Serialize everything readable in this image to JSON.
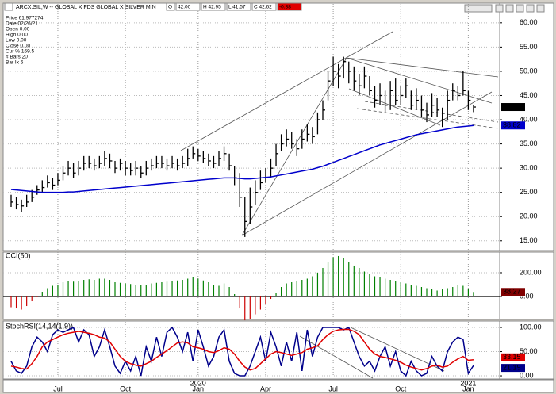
{
  "chart_data": [
    {
      "type": "ohlc",
      "title": "ARCX:SIL,W -- GLOBAL X FDS GLOBAL X SILVER MIN",
      "header_fields": [
        "O",
        "42.00",
        "H 42.95",
        "L 41.57",
        "C 42.62",
        "-0.38"
      ],
      "info_lines": [
        "Price 61.977274",
        "Date 02/26/21",
        "Open 0.00",
        "High 0.00",
        "Low 0.00",
        "Close 0.00",
        "Cur % 169.5",
        "# Bars 20",
        "Bar Ix 6"
      ],
      "color": "#000000",
      "high": [
        24.5,
        24.0,
        23.5,
        24.5,
        25.5,
        26.5,
        27.5,
        28.5,
        28.0,
        29.0,
        30.5,
        31.5,
        31.0,
        31.5,
        32.5,
        32.5,
        32.0,
        32.5,
        33.5,
        33.0,
        31.5,
        32.0,
        31.5,
        31.0,
        31.5,
        30.5,
        31.5,
        32.0,
        32.5,
        32.5,
        32.0,
        32.5,
        32.0,
        32.5,
        34.0,
        34.5,
        34.0,
        33.5,
        33.0,
        32.5,
        33.5,
        34.5,
        33.0,
        30.5,
        29.0,
        24.0,
        26.0,
        27.5,
        29.5,
        30.0,
        32.0,
        35.0,
        37.0,
        38.0,
        37.5,
        36.0,
        38.0,
        39.0,
        38.5,
        41.5,
        44.0,
        50.0,
        53.0,
        51.5,
        53.0,
        52.0,
        51.0,
        49.5,
        51.0,
        49.0,
        47.0,
        47.5,
        46.0,
        48.0,
        48.5,
        47.0,
        48.5,
        46.0,
        46.5,
        45.0,
        43.5,
        45.5,
        44.5,
        42.5,
        46.0,
        47.5,
        47.0,
        50.0,
        46.0,
        42.95
      ],
      "low": [
        22.0,
        21.5,
        21.0,
        22.0,
        23.0,
        24.5,
        25.0,
        26.0,
        25.5,
        26.5,
        27.5,
        28.5,
        28.0,
        28.5,
        29.5,
        30.0,
        29.5,
        30.0,
        30.5,
        30.0,
        29.0,
        29.5,
        28.5,
        28.5,
        28.5,
        28.0,
        28.5,
        29.5,
        30.0,
        30.0,
        29.5,
        30.0,
        29.5,
        30.0,
        30.5,
        32.0,
        31.5,
        31.0,
        30.5,
        30.0,
        30.5,
        31.5,
        29.5,
        26.5,
        22.0,
        15.8,
        18.5,
        22.5,
        25.5,
        27.0,
        28.0,
        30.5,
        33.5,
        34.5,
        34.0,
        32.5,
        34.0,
        35.5,
        35.0,
        37.0,
        40.0,
        44.0,
        47.0,
        46.5,
        48.5,
        47.5,
        46.0,
        45.0,
        46.5,
        45.0,
        42.5,
        43.0,
        41.5,
        42.0,
        43.0,
        43.0,
        44.5,
        42.0,
        42.0,
        40.5,
        39.5,
        40.5,
        40.5,
        38.5,
        40.0,
        44.0,
        44.0,
        45.0,
        42.0,
        41.57
      ],
      "close": [
        23.0,
        22.5,
        22.2,
        23.0,
        24.0,
        25.5,
        26.0,
        27.0,
        26.5,
        27.5,
        29.0,
        30.0,
        29.0,
        30.0,
        31.0,
        31.0,
        30.5,
        31.0,
        32.0,
        31.5,
        30.0,
        31.0,
        30.0,
        29.5,
        30.0,
        29.0,
        30.0,
        30.5,
        31.0,
        31.0,
        30.5,
        31.0,
        30.5,
        31.0,
        32.0,
        33.0,
        32.5,
        32.0,
        31.5,
        31.0,
        32.0,
        33.0,
        30.5,
        28.0,
        24.0,
        19.0,
        22.0,
        25.0,
        27.0,
        28.0,
        30.0,
        33.0,
        35.0,
        36.0,
        35.0,
        34.0,
        36.0,
        37.0,
        36.5,
        40.0,
        42.0,
        48.0,
        50.0,
        49.0,
        52.0,
        50.0,
        48.0,
        47.0,
        49.0,
        46.0,
        44.0,
        45.0,
        43.0,
        46.0,
        44.0,
        45.0,
        47.0,
        43.0,
        44.0,
        42.0,
        41.0,
        43.0,
        42.0,
        40.0,
        44.0,
        46.0,
        45.0,
        46.0,
        44.0,
        42.62
      ],
      "moving_average": {
        "color": "#0000cc",
        "values": [
          25.6,
          25.5,
          25.4,
          25.3,
          25.2,
          25.1,
          25.0,
          25.0,
          25.0,
          25.0,
          25.0,
          25.1,
          25.1,
          25.2,
          25.3,
          25.4,
          25.5,
          25.6,
          25.7,
          25.8,
          25.9,
          26.0,
          26.1,
          26.2,
          26.3,
          26.4,
          26.5,
          26.6,
          26.7,
          26.8,
          26.9,
          27.0,
          27.1,
          27.2,
          27.3,
          27.4,
          27.5,
          27.6,
          27.7,
          27.8,
          27.9,
          28.0,
          28.0,
          28.0,
          27.9,
          27.8,
          27.8,
          27.9,
          28.0,
          28.1,
          28.2,
          28.4,
          28.6,
          28.8,
          29.0,
          29.2,
          29.4,
          29.6,
          29.8,
          30.1,
          30.4,
          30.8,
          31.2,
          31.6,
          32.0,
          32.4,
          32.8,
          33.2,
          33.6,
          34.0,
          34.4,
          34.8,
          35.1,
          35.4,
          35.7,
          36.0,
          36.3,
          36.6,
          36.9,
          37.1,
          37.3,
          37.5,
          37.7,
          37.9,
          38.1,
          38.3,
          38.5,
          38.6,
          38.7,
          38.82
        ]
      },
      "ylim": [
        13.0,
        63.9
      ],
      "yticks": [
        {
          "value": 15,
          "label": "15.00"
        },
        {
          "value": 20,
          "label": "20.00"
        },
        {
          "value": 25,
          "label": "25.00"
        },
        {
          "value": 30,
          "label": "30.00"
        },
        {
          "value": 35,
          "label": "35.00"
        },
        {
          "value": 40,
          "label": "40.00"
        },
        {
          "value": 45,
          "label": "45.00"
        },
        {
          "value": 50,
          "label": "50.00"
        },
        {
          "value": 55,
          "label": "55.00"
        },
        {
          "value": 60,
          "label": "60.00"
        }
      ],
      "grid": true
    },
    {
      "type": "bar",
      "title": "CCI(50)",
      "values": [
        -90,
        -100,
        -110,
        -80,
        -40,
        -5,
        40,
        70,
        90,
        100,
        120,
        130,
        125,
        130,
        140,
        145,
        140,
        150,
        150,
        140,
        120,
        115,
        110,
        105,
        100,
        95,
        100,
        110,
        115,
        120,
        125,
        130,
        135,
        140,
        150,
        160,
        150,
        135,
        120,
        100,
        90,
        110,
        80,
        20,
        -100,
        -200,
        -190,
        -150,
        -110,
        -60,
        -20,
        30,
        80,
        110,
        120,
        130,
        140,
        150,
        170,
        200,
        240,
        290,
        330,
        340,
        320,
        290,
        260,
        240,
        210,
        190,
        170,
        160,
        150,
        140,
        130,
        120,
        110,
        100,
        90,
        80,
        70,
        60,
        50,
        60,
        70,
        80,
        100,
        90,
        60,
        38.27
      ],
      "positive_color": "#008000",
      "negative_color": "#cc0000",
      "label_color": "#800000",
      "ylim": [
        -193,
        373
      ],
      "yticks": [
        {
          "value": 0,
          "label": "0.00"
        },
        {
          "value": 200,
          "label": "200.00"
        }
      ],
      "grid": true
    },
    {
      "type": "line",
      "title": "StochRSI(14,14(1,9))",
      "categories": [
        null,
        null,
        null,
        null,
        null,
        null,
        null,
        null,
        null,
        "Jul",
        null,
        null,
        null,
        null,
        null,
        null,
        null,
        null,
        null,
        null,
        null,
        null,
        "Oct",
        null,
        null,
        null,
        null,
        null,
        null,
        null,
        null,
        null,
        null,
        null,
        null,
        null,
        "Jan",
        null,
        null,
        null,
        null,
        null,
        null,
        null,
        null,
        null,
        null,
        null,
        null,
        "Apr",
        null,
        null,
        null,
        null,
        null,
        null,
        null,
        null,
        null,
        null,
        null,
        null,
        "Jul",
        null,
        null,
        null,
        null,
        null,
        null,
        null,
        null,
        null,
        null,
        null,
        null,
        "Oct",
        null,
        null,
        null,
        null,
        null,
        null,
        null,
        null,
        null,
        null,
        null,
        null,
        "Jan",
        null
      ],
      "category_years": [
        null,
        null,
        null,
        null,
        null,
        null,
        null,
        null,
        null,
        null,
        null,
        null,
        null,
        null,
        null,
        null,
        null,
        null,
        null,
        null,
        null,
        null,
        null,
        null,
        null,
        null,
        null,
        null,
        null,
        null,
        null,
        null,
        null,
        null,
        null,
        null,
        "2020",
        null,
        null,
        null,
        null,
        null,
        null,
        null,
        null,
        null,
        null,
        null,
        null,
        null,
        null,
        null,
        null,
        null,
        null,
        null,
        null,
        null,
        null,
        null,
        null,
        null,
        null,
        null,
        null,
        null,
        null,
        null,
        null,
        null,
        null,
        null,
        null,
        null,
        null,
        null,
        null,
        null,
        null,
        null,
        null,
        null,
        null,
        null,
        null,
        null,
        null,
        null,
        "2021",
        null
      ],
      "series": [
        {
          "color": "#00008b",
          "values": [
            30,
            10,
            5,
            20,
            60,
            80,
            70,
            50,
            85,
            95,
            90,
            95,
            100,
            70,
            95,
            85,
            40,
            60,
            95,
            60,
            20,
            5,
            30,
            10,
            40,
            0,
            60,
            30,
            80,
            40,
            90,
            100,
            80,
            50,
            90,
            30,
            95,
            60,
            20,
            40,
            80,
            95,
            30,
            5,
            0,
            0,
            20,
            50,
            80,
            30,
            90,
            60,
            20,
            70,
            30,
            90,
            10,
            95,
            40,
            80,
            100,
            100,
            100,
            100,
            95,
            100,
            70,
            40,
            20,
            30,
            10,
            40,
            60,
            20,
            50,
            10,
            0,
            30,
            10,
            0,
            5,
            40,
            20,
            10,
            50,
            70,
            80,
            75,
            5,
            21.19
          ]
        },
        {
          "color": "#e00000",
          "values": [
            20,
            18,
            15,
            14,
            25,
            40,
            60,
            70,
            75,
            80,
            85,
            88,
            90,
            92,
            90,
            88,
            85,
            80,
            78,
            70,
            55,
            40,
            30,
            25,
            22,
            20,
            25,
            30,
            38,
            45,
            52,
            60,
            68,
            70,
            68,
            60,
            58,
            55,
            50,
            48,
            52,
            58,
            55,
            45,
            30,
            18,
            12,
            15,
            25,
            35,
            45,
            50,
            48,
            45,
            42,
            45,
            48,
            55,
            58,
            62,
            75,
            85,
            92,
            95,
            96,
            96,
            92,
            85,
            70,
            55,
            45,
            40,
            38,
            35,
            32,
            28,
            22,
            18,
            15,
            12,
            15,
            20,
            22,
            18,
            20,
            28,
            35,
            40,
            32,
            33.15
          ]
        }
      ],
      "ylim": [
        -6.5,
        111.5
      ],
      "yticks": [
        {
          "value": 0,
          "label": "0.00"
        },
        {
          "value": 50,
          "label": "50.00"
        },
        {
          "value": 100,
          "label": "100.00"
        }
      ],
      "grid": true
    }
  ]
}
